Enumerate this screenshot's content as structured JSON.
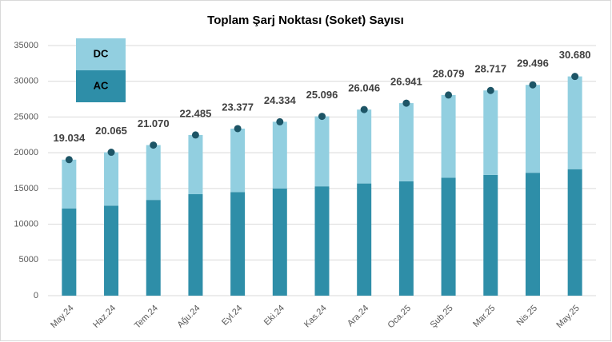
{
  "chart_data": {
    "type": "bar",
    "stacked": true,
    "title": "Toplam Şarj Noktası (Soket) Sayısı",
    "categories": [
      "May.24",
      "Haz.24",
      "Tem.24",
      "Ağu.24",
      "Eyl.24",
      "Eki.24",
      "Kas.24",
      "Ara.24",
      "Oca.25",
      "Şub.25",
      "Mar.25",
      "Nis.25",
      "May.25"
    ],
    "series": [
      {
        "name": "AC",
        "color": "#2e8ea8",
        "values": [
          12200,
          12600,
          13400,
          14200,
          14500,
          15000,
          15300,
          15700,
          16000,
          16500,
          16900,
          17200,
          17700
        ]
      },
      {
        "name": "DC",
        "color": "#92cfe0",
        "values": [
          6834,
          7465,
          7670,
          8285,
          8877,
          9334,
          9796,
          10346,
          10941,
          11579,
          11817,
          12296,
          12980
        ]
      }
    ],
    "total": {
      "color": "#1d5566",
      "values": [
        19034,
        20065,
        21070,
        22485,
        23377,
        24334,
        25096,
        26046,
        26941,
        28079,
        28717,
        29496,
        30680
      ],
      "value_labels": [
        "19.034",
        "20.065",
        "21.070",
        "22.485",
        "23.377",
        "24.334",
        "25.096",
        "26.046",
        "26.941",
        "28.079",
        "28.717",
        "29.496",
        "30.680"
      ]
    },
    "ylim": [
      0,
      35000
    ],
    "yticks": [
      0,
      5000,
      10000,
      15000,
      20000,
      25000,
      30000,
      35000
    ],
    "grid": true
  }
}
